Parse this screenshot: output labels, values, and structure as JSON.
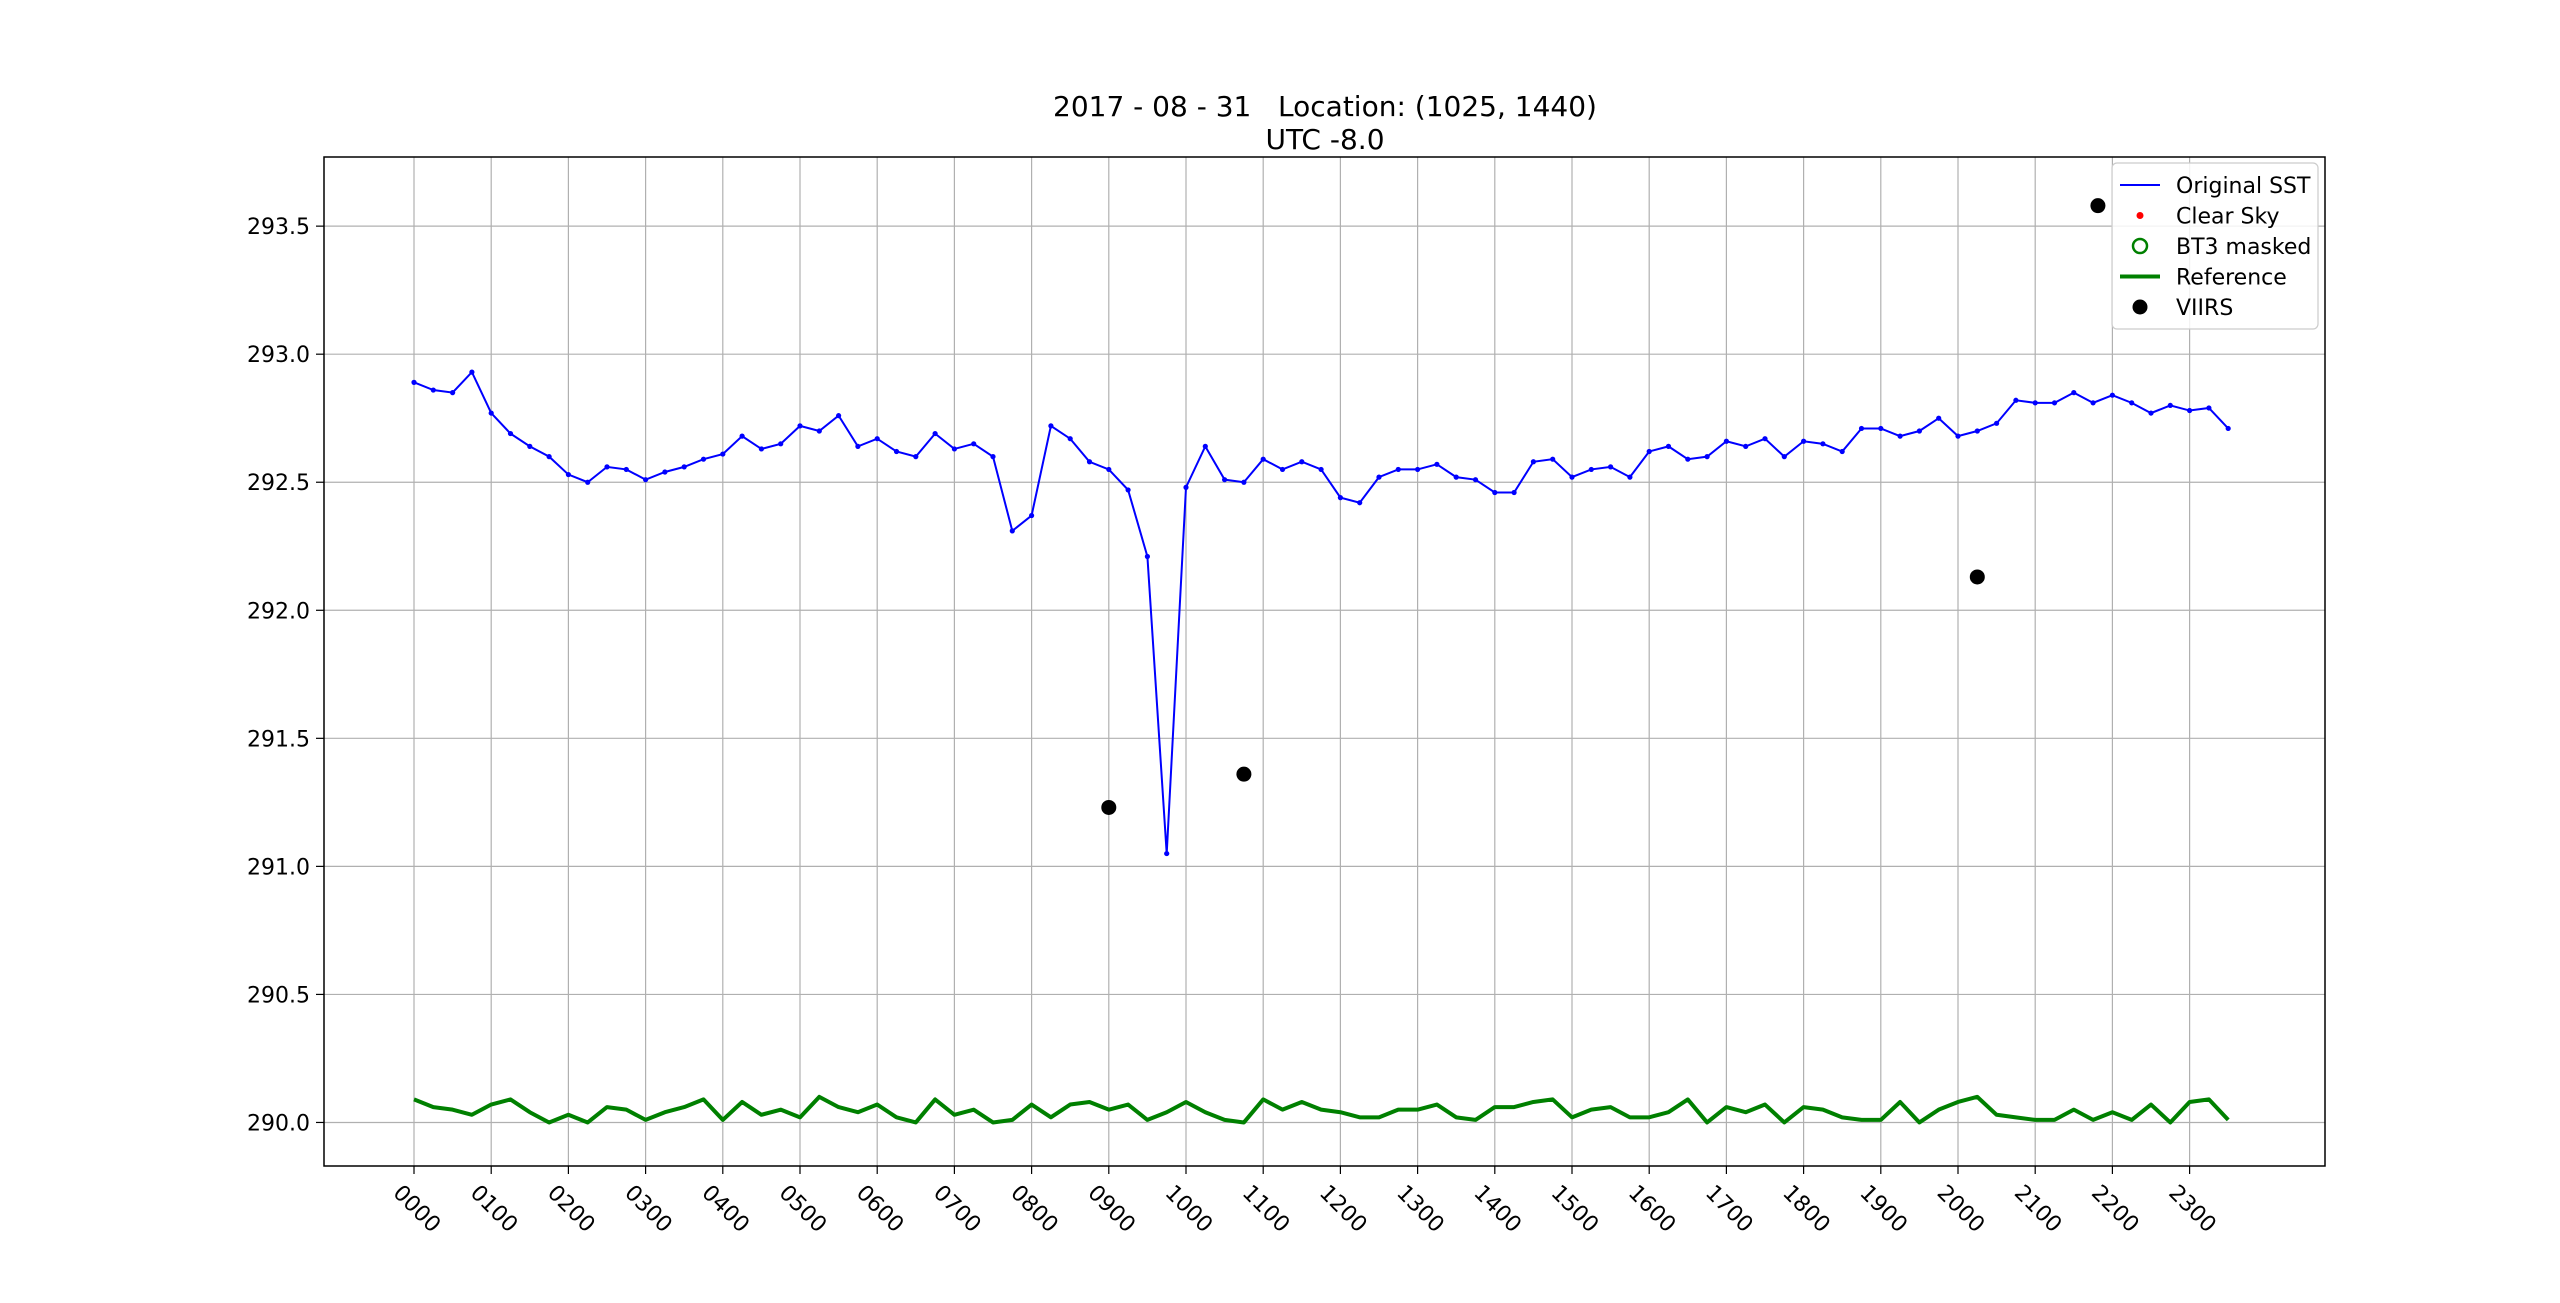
{
  "chart_data": {
    "type": "line",
    "title": "2017 - 08 - 31   Location: (1025, 1440)",
    "subtitle": "UTC -8.0",
    "xlabel": "",
    "ylabel": "",
    "ylim": [
      289.83,
      293.77
    ],
    "yticks": [
      "290.0",
      "290.5",
      "291.0",
      "291.5",
      "292.0",
      "292.5",
      "293.0",
      "293.5"
    ],
    "xticks": [
      "0000",
      "0100",
      "0200",
      "0300",
      "0400",
      "0500",
      "0600",
      "0700",
      "0800",
      "0900",
      "1000",
      "1100",
      "1200",
      "1300",
      "1400",
      "1500",
      "1600",
      "1700",
      "1800",
      "1900",
      "2000",
      "2100",
      "2200",
      "2300"
    ],
    "x_unit": "time of day (HHMM), 15-minute steps",
    "grid": true,
    "legend_position": "upper right",
    "series": [
      {
        "name": "Original SST",
        "style": "line-with-small-markers",
        "color": "#0000ff",
        "values": [
          292.89,
          292.86,
          292.85,
          292.93,
          292.77,
          292.69,
          292.64,
          292.6,
          292.53,
          292.5,
          292.56,
          292.55,
          292.51,
          292.54,
          292.56,
          292.59,
          292.61,
          292.68,
          292.63,
          292.65,
          292.72,
          292.7,
          292.76,
          292.64,
          292.67,
          292.62,
          292.6,
          292.69,
          292.63,
          292.65,
          292.6,
          292.31,
          292.37,
          292.72,
          292.67,
          292.58,
          292.55,
          292.47,
          292.21,
          291.05,
          292.48,
          292.64,
          292.51,
          292.5,
          292.59,
          292.55,
          292.58,
          292.55,
          292.44,
          292.42,
          292.52,
          292.55,
          292.55,
          292.57,
          292.52,
          292.51,
          292.46,
          292.46,
          292.58,
          292.59,
          292.52,
          292.55,
          292.56,
          292.52,
          292.62,
          292.64,
          292.59,
          292.6,
          292.66,
          292.64,
          292.67,
          292.6,
          292.66,
          292.65,
          292.62,
          292.71,
          292.71,
          292.68,
          292.7,
          292.75,
          292.68,
          292.7,
          292.73,
          292.82,
          292.81,
          292.81,
          292.85,
          292.81,
          292.84,
          292.81,
          292.77,
          292.8,
          292.78,
          292.79,
          292.71
        ]
      },
      {
        "name": "Clear Sky",
        "style": "small-red-dot",
        "color": "#ff0000",
        "values": []
      },
      {
        "name": "BT3 masked",
        "style": "green-open-circle",
        "color": "#008000",
        "values": []
      },
      {
        "name": "Reference",
        "style": "thick-line",
        "color": "#008000",
        "values": [
          290.09,
          290.06,
          290.05,
          290.03,
          290.07,
          290.09,
          290.04,
          290.0,
          290.03,
          290.0,
          290.06,
          290.05,
          290.01,
          290.04,
          290.06,
          290.09,
          290.01,
          290.08,
          290.03,
          290.05,
          290.02,
          290.1,
          290.06,
          290.04,
          290.07,
          290.02,
          290.0,
          290.09,
          290.03,
          290.05,
          290.0,
          290.01,
          290.07,
          290.02,
          290.07,
          290.08,
          290.05,
          290.07,
          290.01,
          290.04,
          290.08,
          290.04,
          290.01,
          290.0,
          290.09,
          290.05,
          290.08,
          290.05,
          290.04,
          290.02,
          290.02,
          290.05,
          290.05,
          290.07,
          290.02,
          290.01,
          290.06,
          290.06,
          290.08,
          290.09,
          290.02,
          290.05,
          290.06,
          290.02,
          290.02,
          290.04,
          290.09,
          290.0,
          290.06,
          290.04,
          290.07,
          290.0,
          290.06,
          290.05,
          290.02,
          290.01,
          290.01,
          290.08,
          290.0,
          290.05,
          290.08,
          290.1,
          290.03,
          290.02,
          290.01,
          290.01,
          290.05,
          290.01,
          290.04,
          290.01,
          290.07,
          290.0,
          290.08,
          290.09,
          290.01
        ]
      },
      {
        "name": "VIIRS",
        "style": "large-black-dot",
        "color": "#000000",
        "points": [
          {
            "x": 36,
            "y": 291.23
          },
          {
            "x": 43,
            "y": 291.36
          },
          {
            "x": 81,
            "y": 292.13
          },
          {
            "x": 87.25,
            "y": 293.58
          }
        ]
      }
    ]
  }
}
